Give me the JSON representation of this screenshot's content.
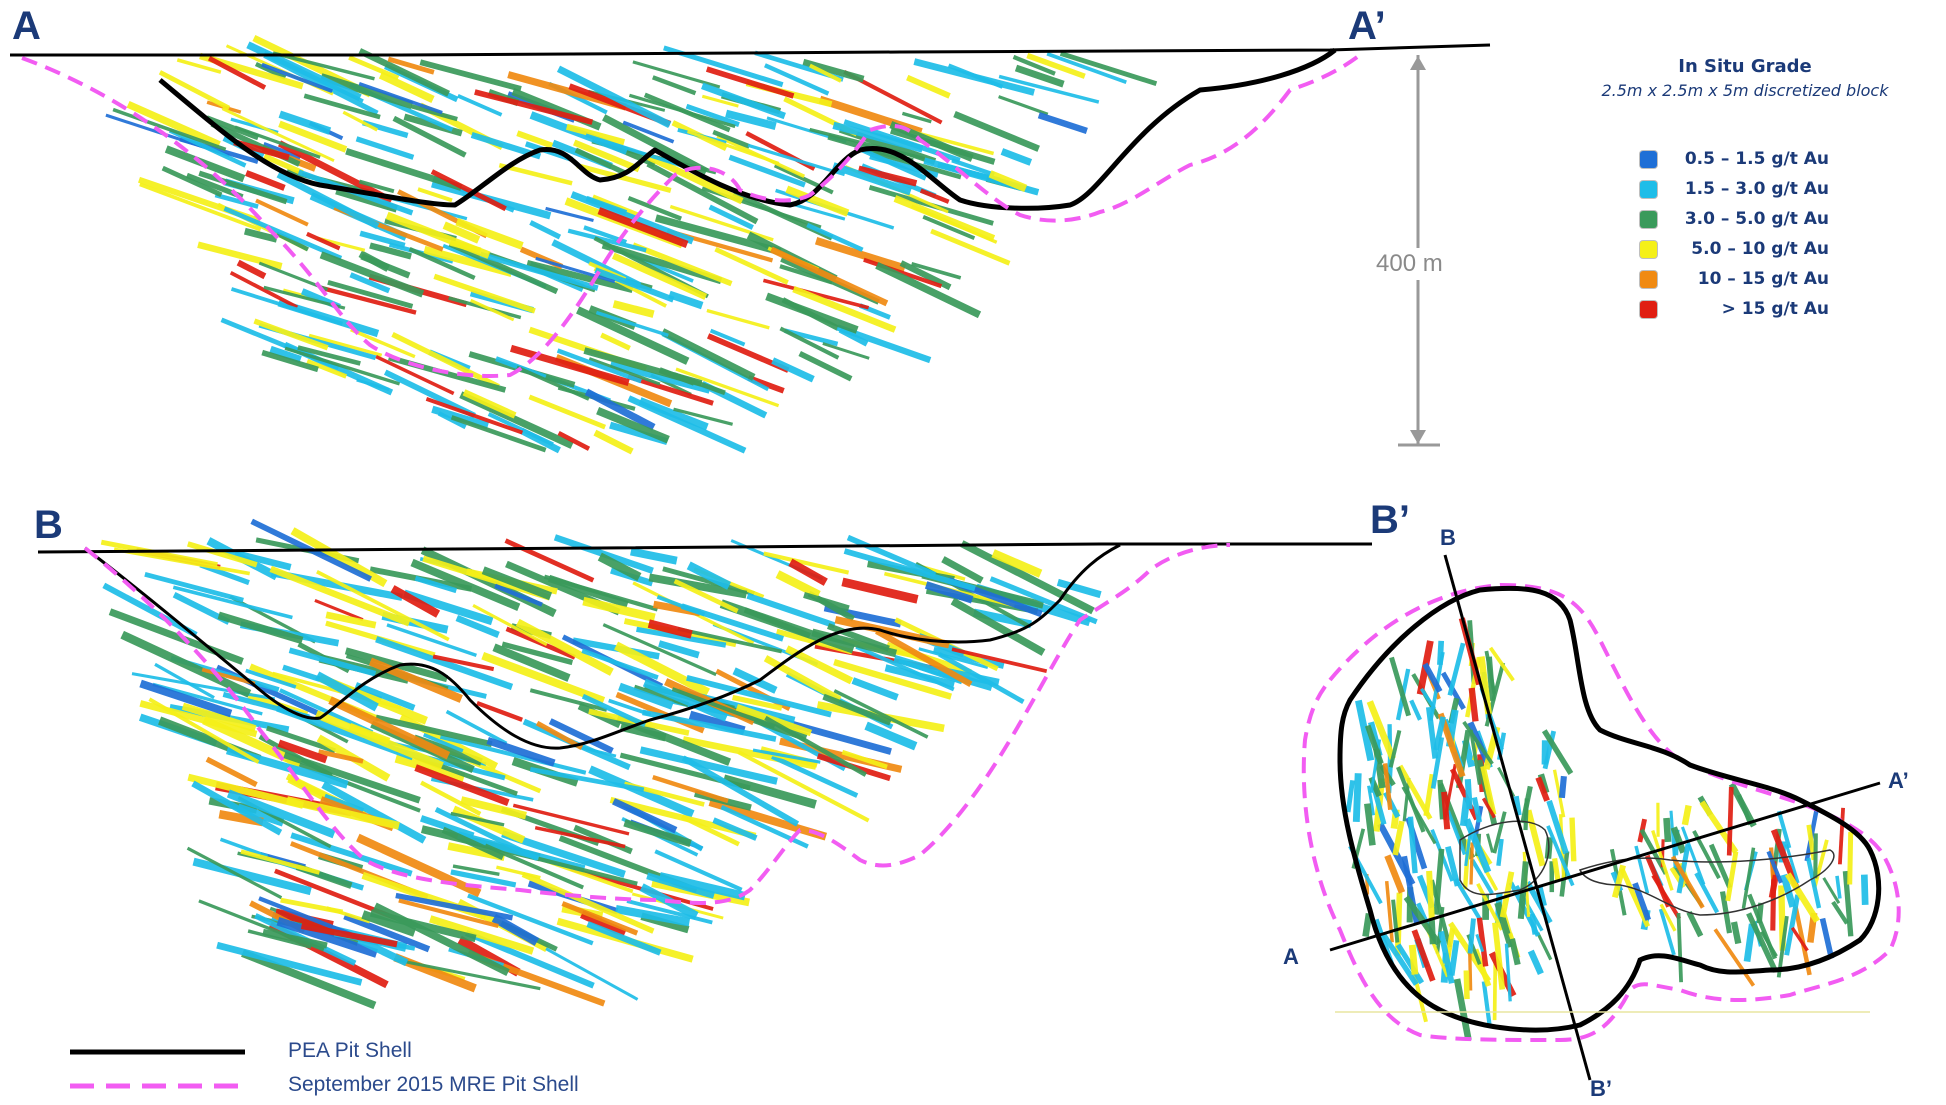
{
  "sections": {
    "a_start": "A",
    "a_end": "A’",
    "b_start": "B",
    "b_end": "B’"
  },
  "scale_bar": {
    "label": "400 m"
  },
  "plan_view": {
    "label_b_top": "B",
    "label_b_bottom": "B’",
    "label_a_left": "A",
    "label_a_right": "A’"
  },
  "legend": {
    "title": "In Situ Grade",
    "subtitle": "2.5m x 2.5m x 5m discretized block",
    "items": [
      {
        "label": "0.5 – 1.5 g/t Au",
        "color": "#1f6fd6"
      },
      {
        "label": "1.5 – 3.0 g/t Au",
        "color": "#1ebde8"
      },
      {
        "label": "3.0 – 5.0 g/t Au",
        "color": "#3a9a5b"
      },
      {
        "label": "5.0 – 10 g/t Au",
        "color": "#f5f018"
      },
      {
        "label": "10 – 15 g/t Au",
        "color": "#f08a12"
      },
      {
        "label": "> 15 g/t Au",
        "color": "#e01e12"
      }
    ]
  },
  "shell_legend": {
    "pea_label": "PEA Pit Shell",
    "pea_color": "#000000",
    "mre_label": "September 2015 MRE Pit Shell",
    "mre_color": "#f25cf2"
  }
}
